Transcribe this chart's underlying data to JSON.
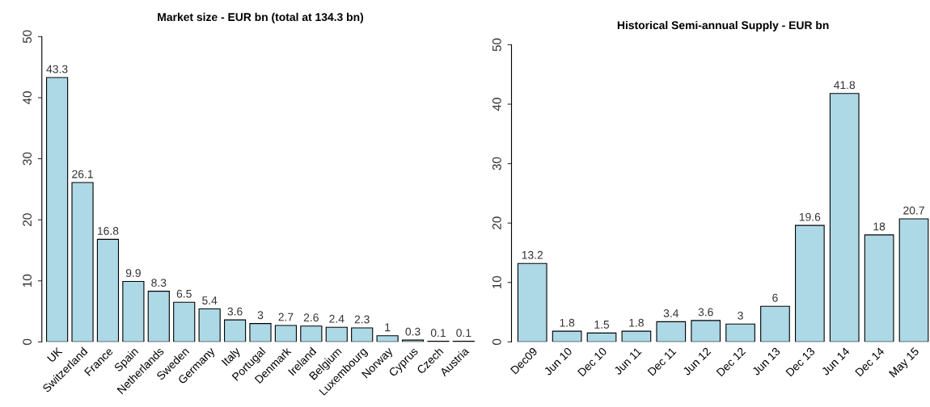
{
  "chart_data": [
    {
      "type": "bar",
      "title": "Market size - EUR bn (total at 134.3 bn)",
      "categories": [
        "UK",
        "Switzerland",
        "France",
        "Spain",
        "Netherlands",
        "Sweden",
        "Germany",
        "Italy",
        "Portugal",
        "Denmark",
        "Ireland",
        "Belgium",
        "Luxembourg",
        "Norway",
        "Cyprus",
        "Czech",
        "Austria"
      ],
      "values": [
        43.3,
        26.1,
        16.8,
        9.9,
        8.3,
        6.5,
        5.4,
        3.6,
        3,
        2.7,
        2.6,
        2.4,
        2.3,
        1,
        0.3,
        0.1,
        0.1
      ],
      "color": "#add8e6",
      "ylim": [
        0,
        50
      ],
      "yticks": [
        0,
        10,
        20,
        30,
        40,
        50
      ],
      "data_labels": true,
      "grid": false,
      "legend": false
    },
    {
      "type": "bar",
      "title": "Historical Semi-annual Supply - EUR bn",
      "categories": [
        "Dec09",
        "Jun 10",
        "Dec 10",
        "Jun 11",
        "Dec 11",
        "Jun 12",
        "Dec 12",
        "Jun 13",
        "Dec 13",
        "Jun 14",
        "Dec 14",
        "May 15"
      ],
      "values": [
        13.2,
        1.8,
        1.5,
        1.8,
        3.4,
        3.6,
        3,
        6,
        19.6,
        41.8,
        18,
        20.7
      ],
      "color": "#add8e6",
      "ylim": [
        0,
        50
      ],
      "yticks": [
        0,
        10,
        20,
        30,
        40,
        50
      ],
      "data_labels": true,
      "grid": false,
      "legend": false
    }
  ]
}
